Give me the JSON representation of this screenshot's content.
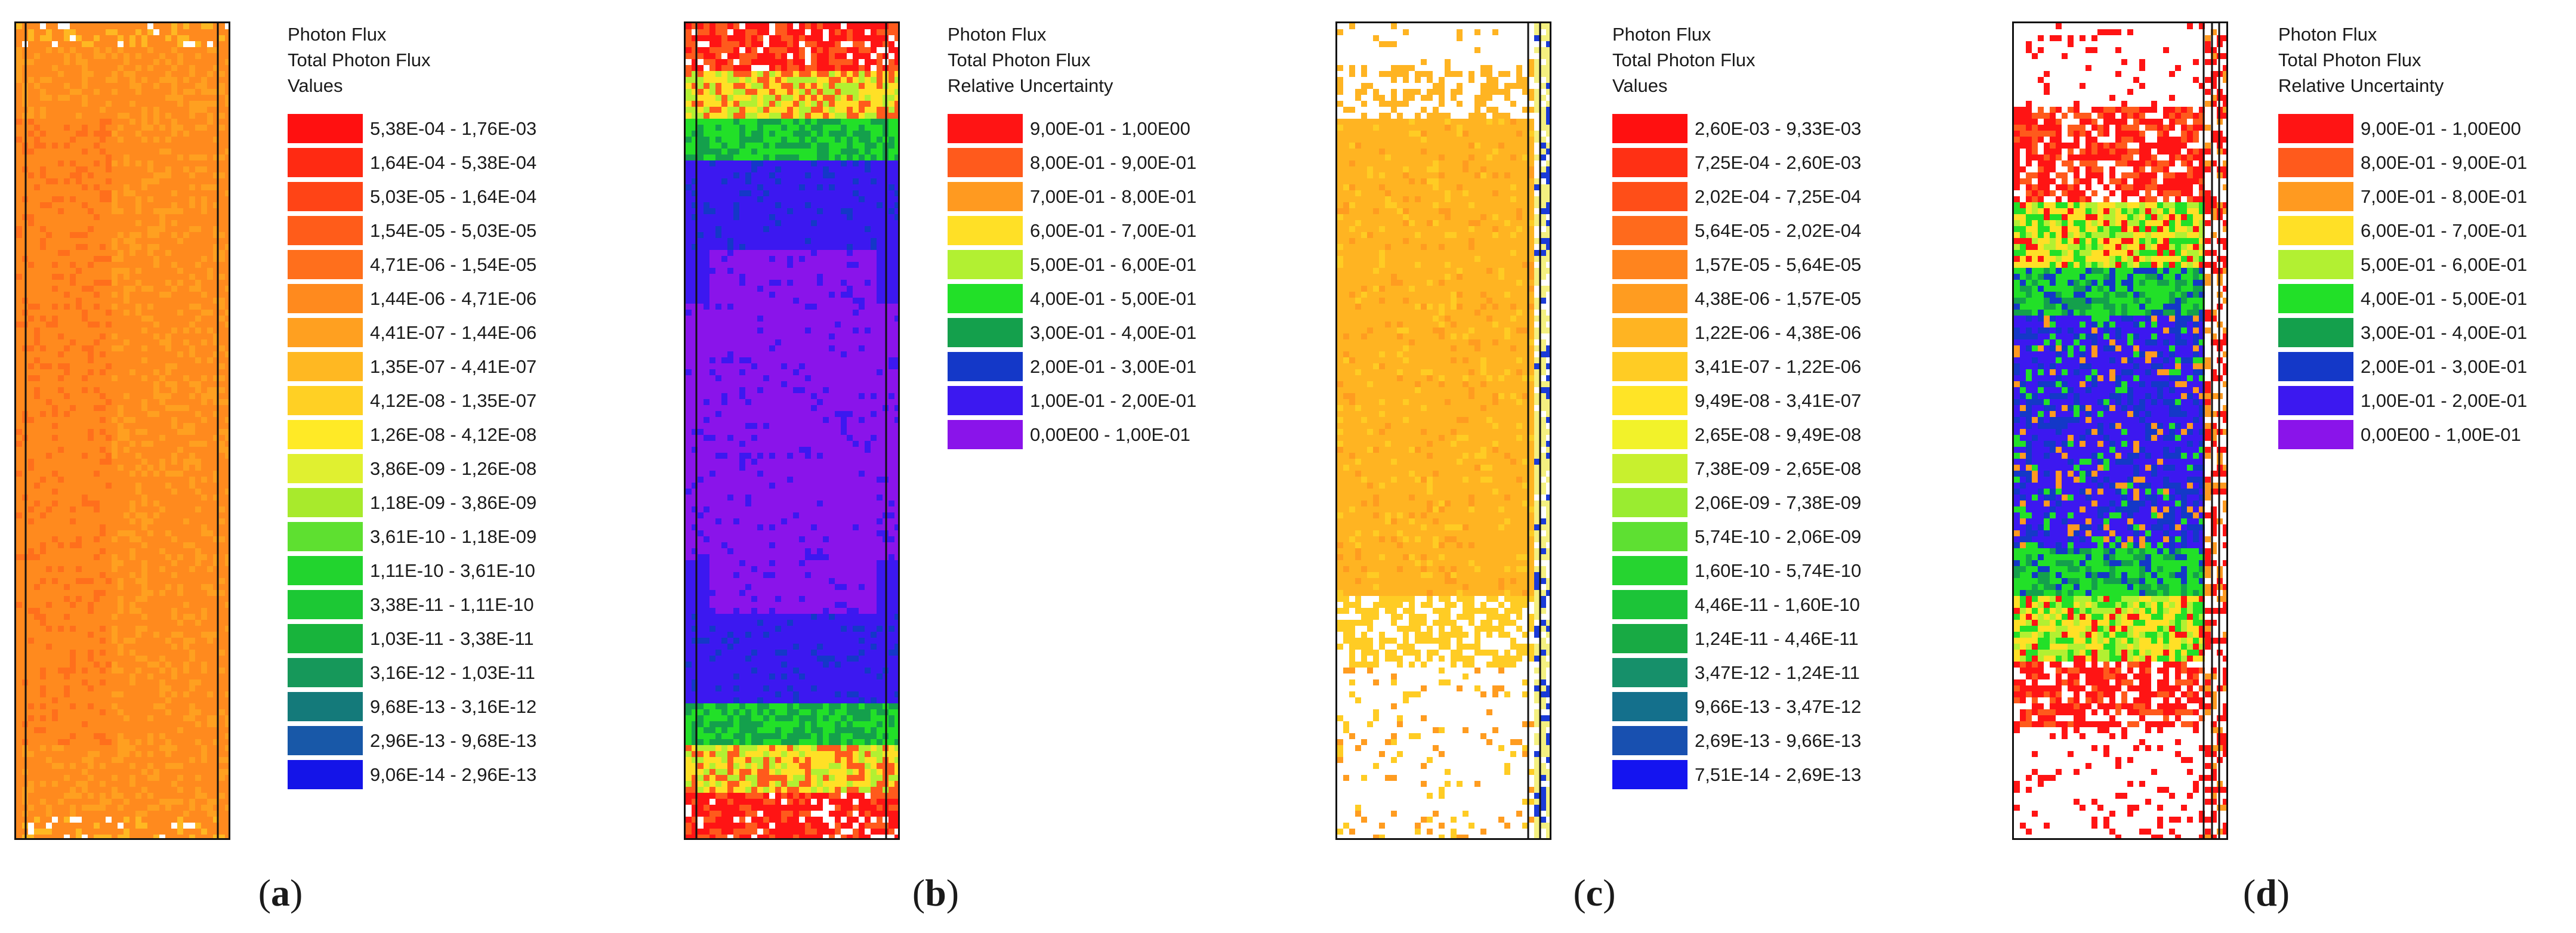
{
  "figure": {
    "panels": [
      {
        "id": "a",
        "caption": {
          "open": "(",
          "letter": "a",
          "close": ")"
        },
        "legend": {
          "line1": "Photon Flux",
          "line2": "Total Photon Flux",
          "line3": "Values"
        },
        "map_kind": "flux-full",
        "map_color": "#f57f17",
        "ranges": [
          {
            "label": "5,38E-04 - 1,76E-03",
            "color": "#ff1010"
          },
          {
            "label": "1,64E-04 - 5,38E-04",
            "color": "#ff2a12"
          },
          {
            "label": "5,03E-05 - 1,64E-04",
            "color": "#ff4416"
          },
          {
            "label": "1,54E-05 - 5,03E-05",
            "color": "#ff5c1a"
          },
          {
            "label": "4,71E-06 - 1,54E-05",
            "color": "#ff6f1c"
          },
          {
            "label": "1,44E-06 - 4,71E-06",
            "color": "#ff8a1e"
          },
          {
            "label": "4,41E-07 - 1,44E-06",
            "color": "#ffa020"
          },
          {
            "label": "1,35E-07 - 4,41E-07",
            "color": "#ffb822"
          },
          {
            "label": "4,12E-08 - 1,35E-07",
            "color": "#ffd024"
          },
          {
            "label": "1,26E-08 - 4,12E-08",
            "color": "#ffea26"
          },
          {
            "label": "3,86E-09 - 1,26E-08",
            "color": "#e0f030"
          },
          {
            "label": "1,18E-09 - 3,86E-09",
            "color": "#a8ea2c"
          },
          {
            "label": "3,61E-10 - 1,18E-09",
            "color": "#5ee030"
          },
          {
            "label": "1,11E-10 - 3,61E-10",
            "color": "#22d42e"
          },
          {
            "label": "3,38E-11 - 1,11E-10",
            "color": "#1cc834"
          },
          {
            "label": "1,03E-11 - 3,38E-11",
            "color": "#18b43c"
          },
          {
            "label": "3,16E-12 - 1,03E-11",
            "color": "#16985a"
          },
          {
            "label": "9,68E-13 - 3,16E-12",
            "color": "#147a7a"
          },
          {
            "label": "2,96E-13 - 9,68E-13",
            "color": "#1858a8"
          },
          {
            "label": "9,06E-14 - 2,96E-13",
            "color": "#1414e8"
          }
        ]
      },
      {
        "id": "b",
        "caption": {
          "open": "(",
          "letter": "b",
          "close": ")"
        },
        "legend": {
          "line1": "Photon Flux",
          "line2": "Total Photon Flux",
          "line3": "Relative Uncertainty"
        },
        "map_kind": "uncert-wide",
        "map_color": "#7a10ec",
        "ranges": [
          {
            "label": "9,00E-01 - 1,00E00",
            "color": "#ff1414"
          },
          {
            "label": "8,00E-01 - 9,00E-01",
            "color": "#ff5a1c"
          },
          {
            "label": "7,00E-01 - 8,00E-01",
            "color": "#ff9a20"
          },
          {
            "label": "6,00E-01 - 7,00E-01",
            "color": "#ffe026"
          },
          {
            "label": "5,00E-01 - 6,00E-01",
            "color": "#b2f032"
          },
          {
            "label": "4,00E-01 - 5,00E-01",
            "color": "#22e028"
          },
          {
            "label": "3,00E-01 - 4,00E-01",
            "color": "#14a04c"
          },
          {
            "label": "2,00E-01 - 3,00E-01",
            "color": "#1438c8"
          },
          {
            "label": "1,00E-01 - 2,00E-01",
            "color": "#3c18f0"
          },
          {
            "label": "0,00E00 - 1,00E-01",
            "color": "#8a14ea"
          }
        ]
      },
      {
        "id": "c",
        "caption": {
          "open": "(",
          "letter": "c",
          "close": ")"
        },
        "legend": {
          "line1": "Photon Flux",
          "line2": "Total Photon Flux",
          "line3": "Values"
        },
        "map_kind": "flux-sparse",
        "map_color": "#f5901a",
        "ranges": [
          {
            "label": "2,60E-03 - 9,33E-03",
            "color": "#ff1010"
          },
          {
            "label": "7,25E-04 - 2,60E-03",
            "color": "#ff3014"
          },
          {
            "label": "2,02E-04 - 7,25E-04",
            "color": "#ff4e18"
          },
          {
            "label": "5,64E-05 - 2,02E-04",
            "color": "#ff6a1c"
          },
          {
            "label": "1,57E-05 - 5,64E-05",
            "color": "#ff841e"
          },
          {
            "label": "4,38E-06 - 1,57E-05",
            "color": "#ff9c20"
          },
          {
            "label": "1,22E-06 - 4,38E-06",
            "color": "#ffb422"
          },
          {
            "label": "3,41E-07 - 1,22E-06",
            "color": "#ffcc24"
          },
          {
            "label": "9,49E-08 - 3,41E-07",
            "color": "#ffe426"
          },
          {
            "label": "2,65E-08 - 9,49E-08",
            "color": "#f2f22a"
          },
          {
            "label": "7,38E-09 - 2,65E-08",
            "color": "#c8f02e"
          },
          {
            "label": "2,06E-09 - 7,38E-09",
            "color": "#9aec30"
          },
          {
            "label": "5,74E-10 - 2,06E-09",
            "color": "#5ee032"
          },
          {
            "label": "1,60E-10 - 5,74E-10",
            "color": "#26d430"
          },
          {
            "label": "4,46E-11 - 1,60E-10",
            "color": "#1cc438"
          },
          {
            "label": "1,24E-11 - 4,46E-11",
            "color": "#18aa44"
          },
          {
            "label": "3,47E-12 - 1,24E-11",
            "color": "#16906a"
          },
          {
            "label": "9,66E-13 - 3,47E-12",
            "color": "#14708c"
          },
          {
            "label": "2,69E-13 - 9,66E-13",
            "color": "#1850b0"
          },
          {
            "label": "7,51E-14 - 2,69E-13",
            "color": "#1414f0"
          }
        ]
      },
      {
        "id": "d",
        "caption": {
          "open": "(",
          "letter": "d",
          "close": ")"
        },
        "legend": {
          "line1": "Photon Flux",
          "line2": "Total Photon Flux",
          "line3": "Relative Uncertainty"
        },
        "map_kind": "uncert-narrow",
        "map_color": "#3a18ea",
        "ranges": [
          {
            "label": "9,00E-01 - 1,00E00",
            "color": "#ff1414"
          },
          {
            "label": "8,00E-01 - 9,00E-01",
            "color": "#ff5a1c"
          },
          {
            "label": "7,00E-01 - 8,00E-01",
            "color": "#ff9a20"
          },
          {
            "label": "6,00E-01 - 7,00E-01",
            "color": "#ffe026"
          },
          {
            "label": "5,00E-01 - 6,00E-01",
            "color": "#b2f032"
          },
          {
            "label": "4,00E-01 - 5,00E-01",
            "color": "#22e028"
          },
          {
            "label": "3,00E-01 - 4,00E-01",
            "color": "#14a04c"
          },
          {
            "label": "2,00E-01 - 3,00E-01",
            "color": "#1438c8"
          },
          {
            "label": "1,00E-01 - 2,00E-01",
            "color": "#3c18f0"
          },
          {
            "label": "0,00E00 - 1,00E-01",
            "color": "#8a14ea"
          }
        ]
      }
    ]
  },
  "chart_data": [
    {
      "type": "heatmap",
      "panel": "a",
      "title": "Photon Flux",
      "quantity": "Total Photon Flux",
      "measure": "Values",
      "legend_ranges": [
        "5,38E-04 - 1,76E-03",
        "1,64E-04 - 5,38E-04",
        "5,03E-05 - 1,64E-04",
        "1,54E-05 - 5,03E-05",
        "4,71E-06 - 1,54E-05",
        "1,44E-06 - 4,71E-06",
        "4,41E-07 - 1,44E-06",
        "1,35E-07 - 4,41E-07",
        "4,12E-08 - 1,35E-07",
        "1,26E-08 - 4,12E-08",
        "3,86E-09 - 1,26E-08",
        "1,18E-09 - 3,86E-09",
        "3,61E-10 - 1,18E-09",
        "1,11E-10 - 3,61E-10",
        "3,38E-11 - 1,11E-10",
        "1,03E-11 - 3,38E-11",
        "3,16E-12 - 1,03E-11",
        "9,68E-13 - 3,16E-12",
        "2,96E-13 - 9,68E-13",
        "9,06E-14 - 2,96E-13"
      ]
    },
    {
      "type": "heatmap",
      "panel": "b",
      "title": "Photon Flux",
      "quantity": "Total Photon Flux",
      "measure": "Relative Uncertainty",
      "legend_ranges": [
        "9,00E-01 - 1,00E00",
        "8,00E-01 - 9,00E-01",
        "7,00E-01 - 8,00E-01",
        "6,00E-01 - 7,00E-01",
        "5,00E-01 - 6,00E-01",
        "4,00E-01 - 5,00E-01",
        "3,00E-01 - 4,00E-01",
        "2,00E-01 - 3,00E-01",
        "1,00E-01 - 2,00E-01",
        "0,00E00 - 1,00E-01"
      ]
    },
    {
      "type": "heatmap",
      "panel": "c",
      "title": "Photon Flux",
      "quantity": "Total Photon Flux",
      "measure": "Values",
      "legend_ranges": [
        "2,60E-03 - 9,33E-03",
        "7,25E-04 - 2,60E-03",
        "2,02E-04 - 7,25E-04",
        "5,64E-05 - 2,02E-04",
        "1,57E-05 - 5,64E-05",
        "4,38E-06 - 1,57E-05",
        "1,22E-06 - 4,38E-06",
        "3,41E-07 - 1,22E-06",
        "9,49E-08 - 3,41E-07",
        "2,65E-08 - 9,49E-08",
        "7,38E-09 - 2,65E-08",
        "2,06E-09 - 7,38E-09",
        "5,74E-10 - 2,06E-09",
        "1,60E-10 - 5,74E-10",
        "4,46E-11 - 1,60E-10",
        "1,24E-11 - 4,46E-11",
        "3,47E-12 - 1,24E-11",
        "9,66E-13 - 3,47E-12",
        "2,69E-13 - 9,66E-13",
        "7,51E-14 - 2,69E-13"
      ]
    },
    {
      "type": "heatmap",
      "panel": "d",
      "title": "Photon Flux",
      "quantity": "Total Photon Flux",
      "measure": "Relative Uncertainty",
      "legend_ranges": [
        "9,00E-01 - 1,00E00",
        "8,00E-01 - 9,00E-01",
        "7,00E-01 - 8,00E-01",
        "6,00E-01 - 7,00E-01",
        "5,00E-01 - 6,00E-01",
        "4,00E-01 - 5,00E-01",
        "3,00E-01 - 4,00E-01",
        "2,00E-01 - 3,00E-01",
        "1,00E-01 - 2,00E-01",
        "0,00E00 - 1,00E-01"
      ]
    }
  ]
}
